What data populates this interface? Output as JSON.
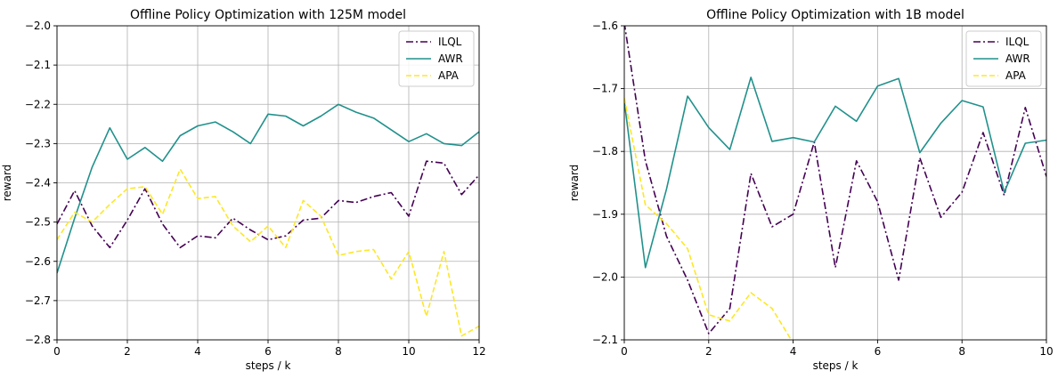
{
  "chart_data": [
    {
      "type": "line",
      "title": "Offline Policy Optimization with 125M model",
      "xlabel": "steps / k",
      "ylabel": "reward",
      "xlim": [
        0,
        12
      ],
      "ylim": [
        -2.8,
        -2.0
      ],
      "xticks": [
        0,
        2,
        4,
        6,
        8,
        10,
        12
      ],
      "yticks": [
        -2.8,
        -2.7,
        -2.6,
        -2.5,
        -2.4,
        -2.3,
        -2.2,
        -2.1,
        -2.0
      ],
      "grid": true,
      "legend": "top-right",
      "series": [
        {
          "name": "ILQL",
          "color": "#440154",
          "dash": "dashdot",
          "x": [
            0,
            0.5,
            1,
            1.5,
            2,
            2.5,
            3,
            3.5,
            4,
            4.5,
            5,
            5.5,
            6,
            6.5,
            7,
            7.5,
            8,
            8.5,
            9,
            9.5,
            10,
            10.5,
            11,
            11.5,
            12
          ],
          "y": [
            -2.505,
            -2.42,
            -2.51,
            -2.565,
            -2.495,
            -2.415,
            -2.505,
            -2.565,
            -2.535,
            -2.54,
            -2.49,
            -2.52,
            -2.545,
            -2.535,
            -2.495,
            -2.49,
            -2.445,
            -2.45,
            -2.435,
            -2.425,
            -2.485,
            -2.345,
            -2.35,
            -2.43,
            -2.38
          ]
        },
        {
          "name": "AWR",
          "color": "#21918c",
          "dash": "solid",
          "x": [
            0,
            0.5,
            1,
            1.5,
            2,
            2.5,
            3,
            3.5,
            4,
            4.5,
            5,
            5.5,
            6,
            6.5,
            7,
            7.5,
            8,
            8.5,
            9,
            9.5,
            10,
            10.5,
            11,
            11.5,
            12
          ],
          "y": [
            -2.63,
            -2.49,
            -2.36,
            -2.26,
            -2.34,
            -2.31,
            -2.345,
            -2.28,
            -2.255,
            -2.245,
            -2.27,
            -2.3,
            -2.225,
            -2.23,
            -2.255,
            -2.23,
            -2.2,
            -2.22,
            -2.235,
            -2.265,
            -2.295,
            -2.275,
            -2.3,
            -2.305,
            -2.27
          ]
        },
        {
          "name": "APA",
          "color": "#fde725",
          "dash": "dashed",
          "x": [
            0,
            0.5,
            1,
            1.5,
            2,
            2.5,
            3,
            3.5,
            4,
            4.5,
            5,
            5.5,
            6,
            6.5,
            7,
            7.5,
            8,
            8.5,
            9,
            9.5,
            10,
            10.5,
            11,
            11.5,
            12
          ],
          "y": [
            -2.545,
            -2.475,
            -2.5,
            -2.455,
            -2.415,
            -2.41,
            -2.48,
            -2.365,
            -2.44,
            -2.435,
            -2.51,
            -2.55,
            -2.51,
            -2.565,
            -2.445,
            -2.485,
            -2.585,
            -2.575,
            -2.57,
            -2.645,
            -2.575,
            -2.74,
            -2.575,
            -2.79,
            -2.765
          ]
        }
      ]
    },
    {
      "type": "line",
      "title": "Offline Policy Optimization with 1B model",
      "xlabel": "steps / k",
      "ylabel": "reward",
      "xlim": [
        0,
        10
      ],
      "ylim": [
        -2.1,
        -1.6
      ],
      "xticks": [
        0,
        2,
        4,
        6,
        8,
        10
      ],
      "yticks": [
        -2.1,
        -2.0,
        -1.9,
        -1.8,
        -1.7,
        -1.6
      ],
      "grid": true,
      "legend": "top-right",
      "series": [
        {
          "name": "ILQL",
          "color": "#440154",
          "dash": "dashdot",
          "x": [
            0,
            0.5,
            1,
            1.5,
            2,
            2.5,
            3,
            3.5,
            4,
            4.5,
            5,
            5.5,
            6,
            6.5,
            7,
            7.5,
            8,
            8.5,
            9,
            9.5,
            10
          ],
          "y": [
            -1.595,
            -1.815,
            -1.935,
            -2.005,
            -2.09,
            -2.05,
            -1.835,
            -1.92,
            -1.9,
            -1.785,
            -1.985,
            -1.815,
            -1.88,
            -2.005,
            -1.81,
            -1.905,
            -1.865,
            -1.77,
            -1.87,
            -1.73,
            -1.84
          ]
        },
        {
          "name": "AWR",
          "color": "#21918c",
          "dash": "solid",
          "x": [
            0,
            0.5,
            1,
            1.5,
            2,
            2.5,
            3,
            3.5,
            4,
            4.5,
            5,
            5.5,
            6,
            6.5,
            7,
            7.5,
            8,
            8.5,
            9,
            9.5,
            10
          ],
          "y": [
            -1.72,
            -1.985,
            -1.86,
            -1.712,
            -1.762,
            -1.797,
            -1.682,
            -1.784,
            -1.778,
            -1.785,
            -1.728,
            -1.752,
            -1.696,
            -1.684,
            -1.802,
            -1.755,
            -1.719,
            -1.729,
            -1.865,
            -1.787,
            -1.782
          ]
        },
        {
          "name": "APA",
          "color": "#fde725",
          "dash": "dashed",
          "x": [
            0,
            0.5,
            1,
            1.5,
            2,
            2.5,
            3,
            3.5,
            4
          ],
          "y": [
            -1.715,
            -1.885,
            -1.915,
            -1.955,
            -2.06,
            -2.07,
            -2.025,
            -2.05,
            -2.105
          ]
        }
      ]
    }
  ]
}
